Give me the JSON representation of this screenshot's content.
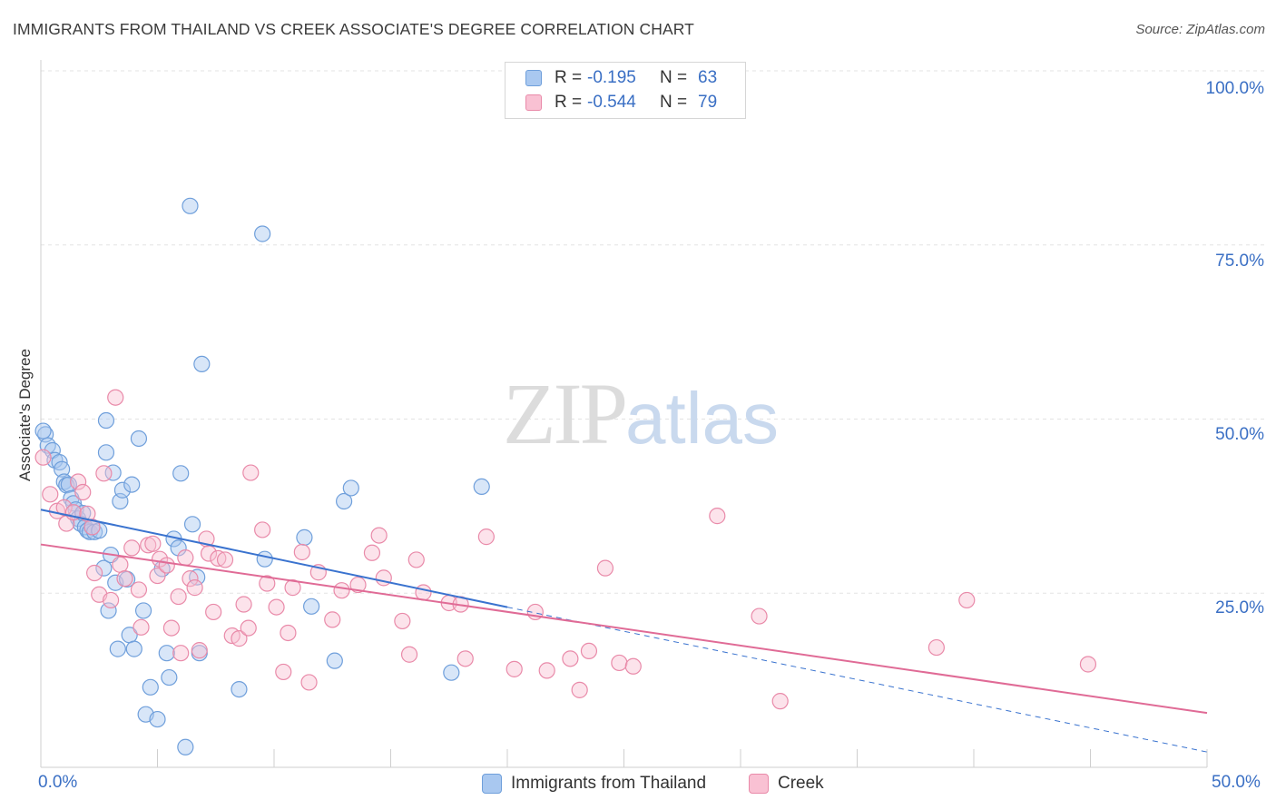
{
  "header": {
    "title": "IMMIGRANTS FROM THAILAND VS CREEK ASSOCIATE'S DEGREE CORRELATION CHART",
    "source": "Source: ZipAtlas.com"
  },
  "watermark": {
    "zip": "ZIP",
    "atlas": "atlas"
  },
  "legend": {
    "rows": [
      {
        "r_label": "R =",
        "r_value": "-0.195",
        "n_label": "N =",
        "n_value": "63",
        "color": "#a9c8f0",
        "border": "#6f9fdb"
      },
      {
        "r_label": "R =",
        "r_value": "-0.544",
        "n_label": "N =",
        "n_value": "79",
        "color": "#f9c1d3",
        "border": "#e98aa9"
      }
    ]
  },
  "bottom_legend": [
    {
      "label": "Immigrants from Thailand",
      "color": "#a9c8f0",
      "border": "#6f9fdb"
    },
    {
      "label": "Creek",
      "color": "#f9c1d3",
      "border": "#e98aa9"
    }
  ],
  "chart_data": {
    "type": "scatter",
    "ylabel": "Associate's Degree",
    "xlim": [
      0,
      50
    ],
    "ylim": [
      0,
      100
    ],
    "x_tick_labels": [
      "0.0%",
      "50.0%"
    ],
    "y_ticks": [
      25,
      50,
      75,
      100
    ],
    "y_tick_labels": [
      "25.0%",
      "50.0%",
      "75.0%",
      "100.0%"
    ],
    "grid": true,
    "legend_position": "top-center",
    "series": [
      {
        "name": "Immigrants from Thailand",
        "color": "#6f9fdb",
        "fill": "#a9c8f0",
        "points": [
          [
            0.2,
            47.8
          ],
          [
            0.3,
            46.2
          ],
          [
            0.5,
            45.5
          ],
          [
            0.6,
            44.1
          ],
          [
            0.8,
            43.8
          ],
          [
            0.9,
            42.8
          ],
          [
            1.0,
            41.0
          ],
          [
            1.1,
            40.5
          ],
          [
            1.2,
            40.6
          ],
          [
            1.3,
            38.6
          ],
          [
            1.4,
            37.9
          ],
          [
            1.5,
            37.0
          ],
          [
            1.6,
            35.7
          ],
          [
            1.7,
            35.0
          ],
          [
            1.8,
            36.5
          ],
          [
            1.9,
            34.5
          ],
          [
            2.0,
            34.0
          ],
          [
            2.1,
            33.8
          ],
          [
            2.2,
            34.5
          ],
          [
            2.3,
            33.8
          ],
          [
            2.5,
            34.0
          ],
          [
            2.7,
            28.6
          ],
          [
            2.8,
            45.2
          ],
          [
            2.8,
            49.8
          ],
          [
            2.9,
            22.5
          ],
          [
            3.0,
            30.5
          ],
          [
            3.1,
            42.3
          ],
          [
            3.2,
            26.5
          ],
          [
            3.3,
            17.0
          ],
          [
            3.4,
            38.2
          ],
          [
            3.5,
            39.8
          ],
          [
            3.7,
            27.0
          ],
          [
            3.8,
            19.0
          ],
          [
            3.9,
            40.6
          ],
          [
            4.0,
            17.0
          ],
          [
            4.2,
            47.2
          ],
          [
            4.4,
            22.5
          ],
          [
            4.5,
            7.6
          ],
          [
            4.7,
            11.5
          ],
          [
            5.0,
            6.9
          ],
          [
            5.2,
            28.5
          ],
          [
            5.4,
            16.4
          ],
          [
            5.5,
            12.9
          ],
          [
            5.7,
            32.8
          ],
          [
            5.9,
            31.5
          ],
          [
            6.0,
            42.2
          ],
          [
            6.2,
            2.9
          ],
          [
            6.4,
            80.6
          ],
          [
            6.5,
            34.9
          ],
          [
            6.7,
            27.3
          ],
          [
            6.8,
            16.4
          ],
          [
            6.9,
            57.9
          ],
          [
            8.5,
            11.2
          ],
          [
            9.5,
            76.6
          ],
          [
            9.6,
            29.9
          ],
          [
            11.3,
            33.0
          ],
          [
            11.6,
            23.1
          ],
          [
            12.6,
            15.3
          ],
          [
            13.0,
            38.2
          ],
          [
            13.3,
            40.1
          ],
          [
            17.6,
            13.6
          ],
          [
            18.9,
            40.3
          ],
          [
            0.1,
            48.3
          ]
        ]
      },
      {
        "name": "Creek",
        "color": "#e98aa9",
        "fill": "#f9c1d3",
        "points": [
          [
            0.1,
            44.5
          ],
          [
            0.4,
            39.2
          ],
          [
            0.7,
            36.8
          ],
          [
            1.0,
            37.3
          ],
          [
            1.1,
            35.0
          ],
          [
            1.4,
            36.6
          ],
          [
            1.6,
            41.0
          ],
          [
            1.8,
            39.5
          ],
          [
            2.0,
            36.4
          ],
          [
            2.2,
            34.5
          ],
          [
            2.3,
            27.9
          ],
          [
            2.5,
            24.8
          ],
          [
            2.7,
            42.2
          ],
          [
            3.0,
            24.0
          ],
          [
            3.2,
            53.1
          ],
          [
            3.4,
            29.1
          ],
          [
            3.6,
            27.1
          ],
          [
            3.9,
            31.5
          ],
          [
            4.2,
            25.5
          ],
          [
            4.3,
            20.1
          ],
          [
            4.6,
            31.9
          ],
          [
            4.8,
            32.1
          ],
          [
            5.0,
            27.5
          ],
          [
            5.1,
            29.9
          ],
          [
            5.4,
            29.0
          ],
          [
            5.6,
            20.0
          ],
          [
            5.9,
            24.5
          ],
          [
            6.0,
            16.4
          ],
          [
            6.2,
            30.1
          ],
          [
            6.4,
            27.1
          ],
          [
            6.6,
            25.8
          ],
          [
            6.8,
            16.8
          ],
          [
            7.1,
            32.8
          ],
          [
            7.2,
            30.7
          ],
          [
            7.4,
            22.3
          ],
          [
            7.6,
            30.0
          ],
          [
            7.9,
            29.8
          ],
          [
            8.2,
            18.9
          ],
          [
            8.5,
            18.5
          ],
          [
            8.7,
            23.4
          ],
          [
            8.9,
            20.0
          ],
          [
            9.0,
            42.3
          ],
          [
            9.5,
            34.1
          ],
          [
            9.7,
            26.4
          ],
          [
            10.1,
            23.0
          ],
          [
            10.4,
            13.7
          ],
          [
            10.6,
            19.3
          ],
          [
            10.8,
            25.8
          ],
          [
            11.2,
            30.9
          ],
          [
            11.5,
            12.2
          ],
          [
            11.9,
            28.0
          ],
          [
            12.5,
            21.2
          ],
          [
            12.9,
            25.4
          ],
          [
            13.6,
            26.2
          ],
          [
            14.2,
            30.8
          ],
          [
            14.5,
            33.3
          ],
          [
            14.7,
            27.2
          ],
          [
            15.5,
            21.0
          ],
          [
            15.8,
            16.2
          ],
          [
            16.1,
            29.8
          ],
          [
            16.4,
            25.1
          ],
          [
            17.5,
            23.6
          ],
          [
            18.0,
            23.4
          ],
          [
            18.2,
            15.6
          ],
          [
            19.1,
            33.1
          ],
          [
            20.3,
            14.1
          ],
          [
            21.2,
            22.3
          ],
          [
            21.7,
            13.9
          ],
          [
            22.7,
            15.6
          ],
          [
            23.1,
            11.1
          ],
          [
            23.5,
            16.7
          ],
          [
            24.2,
            28.6
          ],
          [
            24.8,
            15.0
          ],
          [
            25.4,
            14.5
          ],
          [
            29.0,
            36.1
          ],
          [
            30.8,
            21.7
          ],
          [
            31.7,
            9.5
          ],
          [
            38.4,
            17.2
          ],
          [
            39.7,
            24.0
          ],
          [
            44.9,
            14.8
          ]
        ]
      }
    ],
    "trendlines": [
      {
        "series": "Immigrants from Thailand",
        "solid": [
          [
            0,
            37.0
          ],
          [
            20,
            23.0
          ]
        ],
        "dashed": [
          [
            20,
            23.0
          ],
          [
            50,
            2.2
          ]
        ]
      },
      {
        "series": "Creek",
        "solid": [
          [
            0,
            32.0
          ],
          [
            50,
            7.8
          ]
        ]
      }
    ]
  }
}
